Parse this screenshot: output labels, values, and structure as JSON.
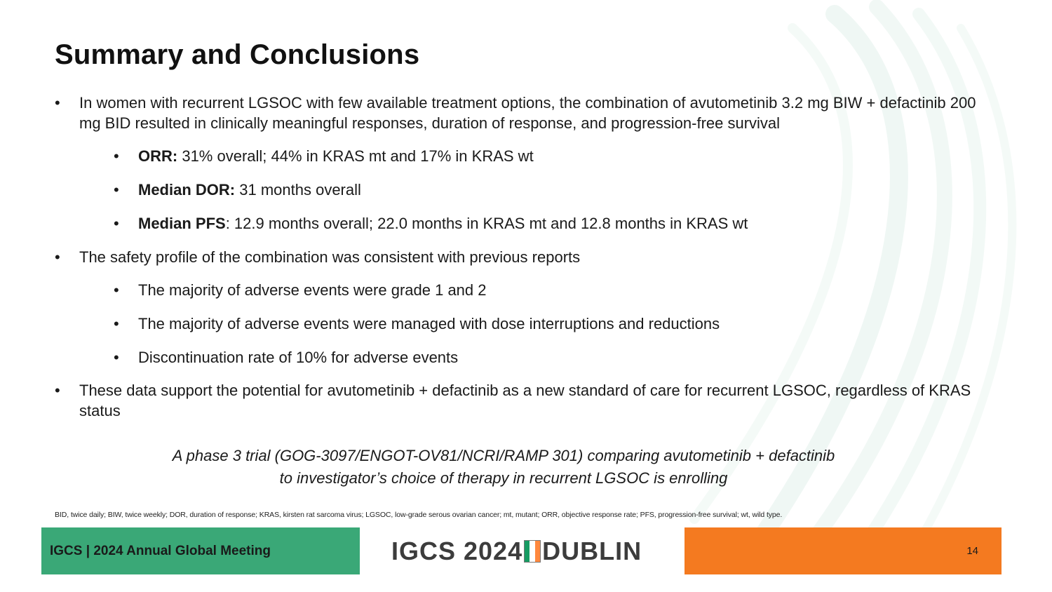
{
  "slide": {
    "title": "Summary and Conclusions",
    "bullets": {
      "b1": "In women with recurrent LGSOC with few available treatment options, the combination of avutometinib 3.2 mg BIW + defactinib 200 mg BID resulted in clinically meaningful responses, duration of response, and progression-free survival",
      "orr_label": "ORR:",
      "orr_text": " 31% overall; 44% in KRAS mt and 17% in KRAS wt",
      "dor_label": "Median DOR:",
      "dor_text": " 31 months overall",
      "pfs_label": "Median PFS",
      "pfs_text": ": 12.9 months overall; 22.0 months in KRAS mt and 12.8 months in KRAS wt",
      "b2": "The safety profile of the combination was consistent with previous reports",
      "b2a": "The majority of adverse events were grade 1 and 2",
      "b2b": "The majority of adverse events were managed with dose interruptions and reductions",
      "b2c": "Discontinuation rate of 10% for adverse events",
      "b3": "These data support the potential for avutometinib + defactinib as a new standard of care for recurrent LGSOC, regardless of KRAS status"
    },
    "note_line1": "A phase 3 trial (GOG-3097/ENGOT-OV81/NCRI/RAMP 301) comparing avutometinib + defactinib",
    "note_line2": "to investigator’s choice of therapy in recurrent LGSOC is enrolling",
    "abbreviations": "BID, twice daily; BIW, twice weekly; DOR, duration of response; KRAS, kirsten rat sarcoma virus; LGSOC, low-grade serous ovarian cancer; mt, mutant; ORR, objective response rate; PFS, progression-free survival; wt, wild type."
  },
  "footer": {
    "meeting": "IGCS | 2024 Annual Global Meeting",
    "logo_left": "IGCS 2024",
    "logo_right": "DUBLIN",
    "page_number": "14"
  },
  "colors": {
    "footer_green": "#3aa877",
    "footer_orange": "#f47a20",
    "flag_green": "#169b62",
    "flag_white": "#ffffff",
    "flag_orange": "#ff883e",
    "swoosh": "#dbeee6"
  }
}
